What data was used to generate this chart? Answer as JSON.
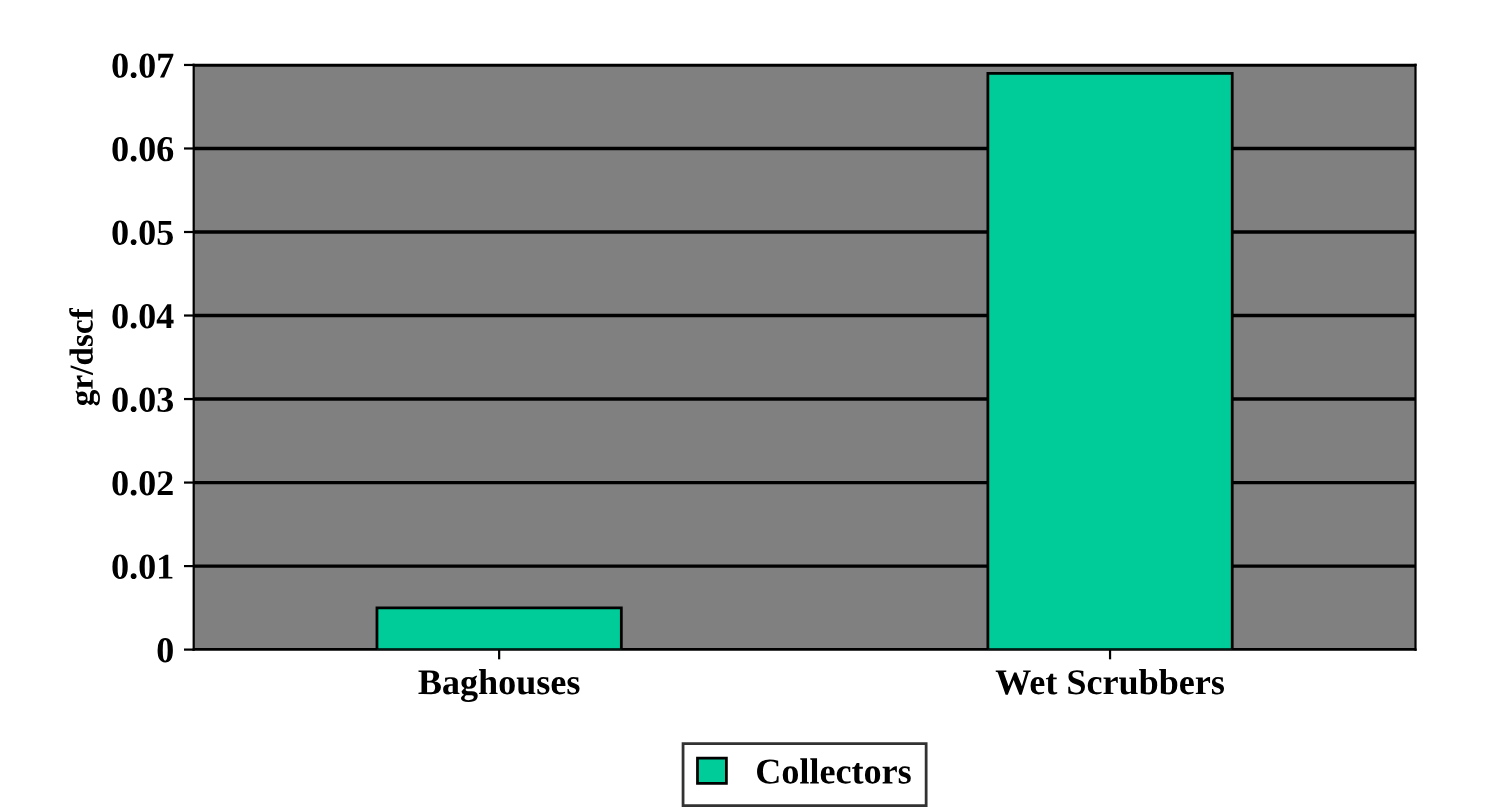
{
  "chart_data": {
    "type": "bar",
    "ylabel": "gr/dscf",
    "categories": [
      "Baghouses",
      "Wet Scrubbers"
    ],
    "series": [
      {
        "name": "Collectors",
        "color": "#00cc99",
        "values": [
          0.005,
          0.069
        ]
      }
    ],
    "ylim": [
      0,
      0.07
    ],
    "yticks": [
      0,
      0.01,
      0.02,
      0.03,
      0.04,
      0.05,
      0.06,
      0.07
    ],
    "grid": "y",
    "legend": "bottom"
  }
}
